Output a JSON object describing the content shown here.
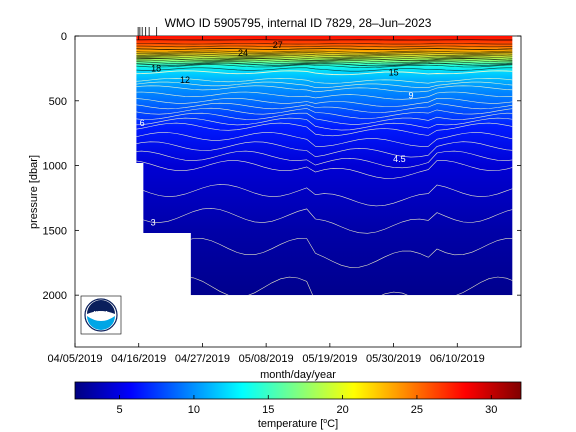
{
  "chart_data": {
    "type": "heatmap",
    "title": "WMO ID 5905795, internal ID 7829, 28–Jun–2023",
    "xlabel": "month/day/year",
    "ylabel": "pressure [dbar]",
    "x_tick_labels": [
      "04/05/2019",
      "04/16/2019",
      "04/27/2019",
      "05/08/2019",
      "05/19/2019",
      "05/30/2019",
      "06/10/2019"
    ],
    "x_tick_days": [
      0,
      11,
      22,
      33,
      44,
      55,
      66
    ],
    "xlim_days": [
      0,
      77
    ],
    "y_ticks": [
      0,
      500,
      1000,
      1500,
      2000
    ],
    "ylim": [
      0,
      2400
    ],
    "y_inverted": true,
    "profile_days": [
      10.9,
      11.2,
      11.6,
      12.2,
      12.8,
      14.1
    ],
    "data_extent": {
      "day": [
        10.6,
        75.5
      ],
      "max_pressure_segments": [
        {
          "from_day": 10.6,
          "to_day": 11.8,
          "max_pressure": 980
        },
        {
          "from_day": 11.8,
          "to_day": 20.0,
          "max_pressure": 1520
        },
        {
          "from_day": 20.0,
          "to_day": 75.5,
          "max_pressure": 2000
        }
      ]
    },
    "temperature_by_pressure": [
      [
        0,
        28
      ],
      [
        60,
        26
      ],
      [
        120,
        23
      ],
      [
        180,
        18
      ],
      [
        230,
        14
      ],
      [
        280,
        12
      ],
      [
        400,
        10
      ],
      [
        500,
        9
      ],
      [
        700,
        6.5
      ],
      [
        1000,
        4.5
      ],
      [
        1500,
        3.2
      ],
      [
        2000,
        2.4
      ]
    ],
    "contour_labels": [
      {
        "text": "27",
        "day": 35,
        "pressure": 70
      },
      {
        "text": "24",
        "day": 29,
        "pressure": 130
      },
      {
        "text": "18",
        "day": 14,
        "pressure": 250
      },
      {
        "text": "12",
        "day": 19,
        "pressure": 340
      },
      {
        "text": "15",
        "day": 55,
        "pressure": 280
      },
      {
        "text": "9",
        "day": 58,
        "pressure": 460
      },
      {
        "text": "6",
        "day": 11.6,
        "pressure": 670
      },
      {
        "text": "4.5",
        "day": 56,
        "pressure": 950
      },
      {
        "text": "3",
        "day": 13.5,
        "pressure": 1440
      }
    ],
    "colorbar": {
      "label": "temperature [°C]",
      "label_main": "temperature [",
      "label_unit_sup": "o",
      "label_unit": "C]",
      "min": 2,
      "max": 32,
      "ticks": [
        5,
        10,
        15,
        20,
        25,
        30
      ],
      "tick_labels": [
        "5",
        "10",
        "15",
        "20",
        "25",
        "30"
      ]
    },
    "logo": {
      "text": "NOAA",
      "colors": {
        "navy": "#0a1f5c",
        "sky": "#00a6e6"
      }
    },
    "colormap": "jet",
    "grid": false
  }
}
